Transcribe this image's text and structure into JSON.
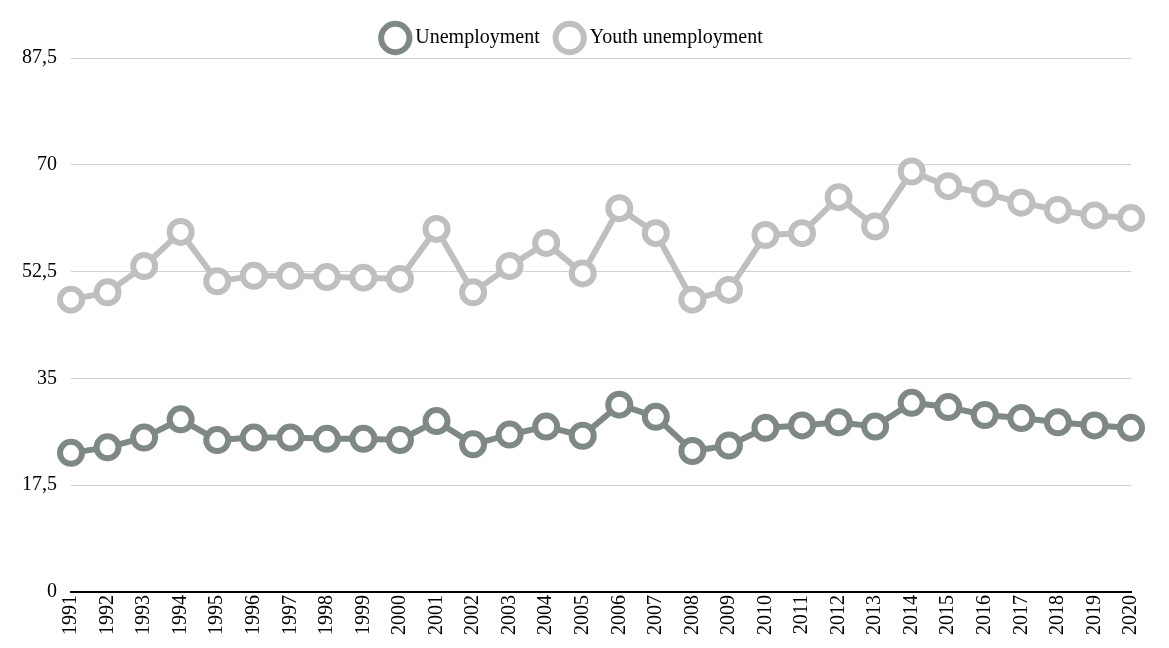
{
  "chart_data": {
    "type": "line",
    "categories": [
      "1991",
      "1992",
      "1993",
      "1994",
      "1995",
      "1996",
      "1997",
      "1998",
      "1999",
      "2000",
      "2001",
      "2002",
      "2003",
      "2004",
      "2005",
      "2006",
      "2007",
      "2008",
      "2009",
      "2010",
      "2011",
      "2012",
      "2013",
      "2014",
      "2015",
      "2016",
      "2017",
      "2018",
      "2019",
      "2020"
    ],
    "series": [
      {
        "name": "Unemployment",
        "color": "#7f8984",
        "values": [
          22.8,
          23.7,
          25.3,
          28.3,
          24.9,
          25.3,
          25.3,
          25.1,
          25.1,
          24.9,
          28.0,
          24.2,
          25.8,
          27.1,
          25.6,
          30.7,
          28.7,
          23.1,
          24.0,
          26.9,
          27.3,
          27.8,
          27.1,
          31.0,
          30.3,
          29.0,
          28.5,
          27.8,
          27.3,
          26.9
        ]
      },
      {
        "name": "Youth unemployment",
        "color": "#bfbfbf",
        "values": [
          47.9,
          49.1,
          53.4,
          59.0,
          50.9,
          51.8,
          51.8,
          51.6,
          51.5,
          51.3,
          59.5,
          49.1,
          53.4,
          57.2,
          52.2,
          62.9,
          58.8,
          47.9,
          49.5,
          58.5,
          58.8,
          64.7,
          59.9,
          68.9,
          66.5,
          65.3,
          63.8,
          62.6,
          61.7,
          61.3
        ]
      }
    ],
    "ylim": [
      0,
      87.5
    ],
    "yticks": [
      0,
      {
        "value": 17.5,
        "label": "17,5"
      },
      35,
      {
        "value": 52.5,
        "label": "52,5"
      },
      70,
      {
        "value": 87.5,
        "label": "87,5"
      }
    ],
    "grid": "y",
    "legend": "top",
    "marker": "circle",
    "line_style": "solid"
  }
}
